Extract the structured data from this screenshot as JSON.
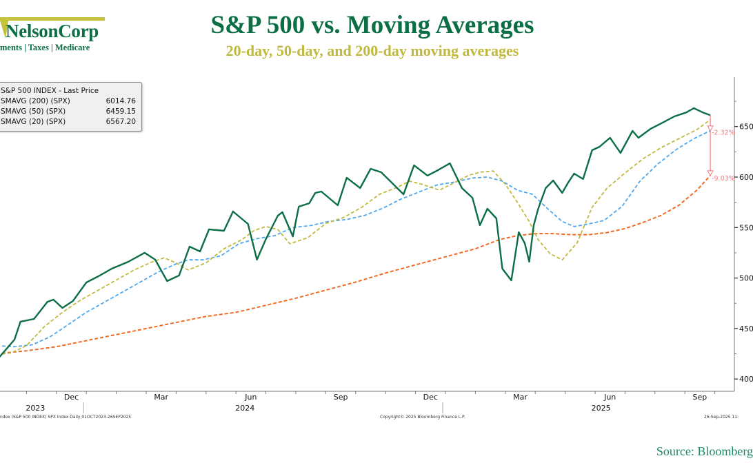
{
  "logo": {
    "name": "NelsonCorp",
    "tagline": "ments | Taxes | Medicare"
  },
  "header": {
    "title": "S&P 500 vs. Moving Averages",
    "subtitle": "20-day, 50-day, and 200-day moving averages"
  },
  "legend": {
    "rows": [
      {
        "label": "S&P 500 INDEX - Last Price",
        "value": ""
      },
      {
        "label": "SMAVG (200) (SPX)",
        "value": "6014.76"
      },
      {
        "label": "SMAVG (50) (SPX)",
        "value": "6459.15"
      },
      {
        "label": "SMAVG (20) (SPX)",
        "value": "6567.20"
      }
    ]
  },
  "annotations": {
    "to_sma50": "-2.32%",
    "to_sma200": "-9.03%"
  },
  "footer": {
    "left_note": "ndex (S&P 500 INDEX) SPX Index  Daily 01OCT2023-26SEP2025",
    "center_note": "Copyright© 2025 Bloomberg Finance L.P.",
    "right_note": "26-Sep-2025 11:",
    "source": "Source: Bloomberg"
  },
  "colors": {
    "price": "#0b6e45",
    "sma20": "#c1b93c",
    "sma50": "#4aa7f0",
    "sma200": "#f26a22",
    "annotation": "#f07a80",
    "title": "#0b6e45",
    "subtitle": "#c1b93c"
  },
  "chart_data": {
    "type": "line",
    "title": "S&P 500 vs. Moving Averages",
    "subtitle": "20-day, 50-day, and 200-day moving averages",
    "xlabel": "",
    "ylabel": "",
    "x_unit": "months since 2023-10-01",
    "x_range": [
      0,
      23.85
    ],
    "ylim": [
      3950,
      6900
    ],
    "y_ticks": [
      4000,
      4500,
      5000,
      5500,
      6000,
      6500
    ],
    "y_tick_labels": [
      "4000",
      "4500",
      "5000",
      "5500",
      "6000",
      "6500"
    ],
    "y_axis_side": "right",
    "x_month_ticks": [
      {
        "label": "Dec",
        "m": 2.5
      },
      {
        "label": "Mar",
        "m": 5.5
      },
      {
        "label": "Jun",
        "m": 8.5
      },
      {
        "label": "Sep",
        "m": 11.5
      },
      {
        "label": "Dec",
        "m": 14.5
      },
      {
        "label": "Mar",
        "m": 17.5
      },
      {
        "label": "Jun",
        "m": 20.5
      },
      {
        "label": "Sep",
        "m": 23.5
      }
    ],
    "x_year_labels": [
      {
        "label": "2023",
        "m": 1.3
      },
      {
        "label": "2024",
        "m": 8.3
      },
      {
        "label": "2025",
        "m": 20.2
      }
    ],
    "x_year_dividers": [
      3.0,
      15.0
    ],
    "grid": false,
    "legend_position": "top-left",
    "series": [
      {
        "name": "S&P 500 INDEX - Last Price",
        "style": "solid",
        "x": [
          0,
          0.6,
          0.8,
          1.25,
          1.7,
          1.9,
          2.2,
          2.55,
          3.0,
          3.45,
          3.85,
          4.4,
          4.95,
          5.3,
          5.7,
          6.1,
          6.45,
          6.8,
          7.1,
          7.6,
          7.9,
          8.4,
          8.7,
          9.0,
          9.4,
          9.55,
          9.9,
          10.1,
          10.45,
          10.65,
          10.85,
          11.4,
          11.7,
          12.15,
          12.5,
          12.85,
          13.25,
          13.6,
          13.95,
          14.4,
          14.75,
          15.15,
          15.55,
          15.9,
          16.15,
          16.4,
          16.7,
          16.9,
          17.2,
          17.45,
          17.65,
          17.8,
          17.95,
          18.1,
          18.35,
          18.6,
          18.9,
          19.1,
          19.3,
          19.6,
          19.9,
          20.15,
          20.5,
          20.85,
          21.25,
          21.45,
          21.85,
          22.2,
          22.65,
          23.05,
          23.3,
          23.6,
          23.85
        ],
        "values": [
          4185,
          4390,
          4568,
          4595,
          4765,
          4786,
          4704,
          4772,
          4956,
          5025,
          5093,
          5161,
          5250,
          5182,
          4970,
          5025,
          5311,
          5263,
          5482,
          5468,
          5659,
          5536,
          5182,
          5386,
          5618,
          5652,
          5413,
          5707,
          5741,
          5843,
          5857,
          5720,
          5993,
          5891,
          6082,
          6048,
          5932,
          5829,
          6116,
          6014,
          6068,
          6136,
          5891,
          5795,
          5523,
          5686,
          5591,
          5093,
          4977,
          5454,
          5345,
          5161,
          5523,
          5686,
          5891,
          5966,
          5843,
          5945,
          6034,
          5980,
          6266,
          6300,
          6389,
          6239,
          6457,
          6389,
          6477,
          6530,
          6600,
          6640,
          6682,
          6640,
          6612
        ]
      },
      {
        "name": "SMAVG (20) (SPX)",
        "style": "dashed",
        "x": [
          0,
          0.5,
          1.0,
          1.6,
          2.2,
          2.8,
          3.4,
          4.0,
          4.6,
          5.2,
          5.6,
          6.0,
          6.4,
          7.0,
          7.6,
          8.2,
          8.6,
          9.0,
          9.4,
          9.8,
          10.4,
          11.0,
          11.6,
          12.2,
          12.8,
          13.4,
          13.8,
          14.2,
          14.8,
          15.4,
          15.8,
          16.2,
          16.6,
          17.0,
          17.4,
          17.8,
          18.1,
          18.5,
          18.9,
          19.4,
          19.9,
          20.4,
          21.0,
          21.6,
          22.2,
          22.8,
          23.4,
          23.85
        ],
        "values": [
          4240,
          4260,
          4330,
          4520,
          4660,
          4780,
          4880,
          4980,
          5080,
          5160,
          5200,
          5150,
          5080,
          5150,
          5290,
          5380,
          5470,
          5510,
          5480,
          5340,
          5400,
          5540,
          5600,
          5700,
          5830,
          5900,
          5960,
          5930,
          5870,
          5960,
          6020,
          6050,
          6060,
          5930,
          5750,
          5560,
          5380,
          5240,
          5180,
          5350,
          5700,
          5890,
          6040,
          6180,
          6290,
          6380,
          6470,
          6567.2
        ]
      },
      {
        "name": "SMAVG (50) (SPX)",
        "style": "dashed",
        "x": [
          0,
          0.6,
          1.2,
          1.8,
          2.4,
          3.0,
          3.6,
          4.2,
          4.8,
          5.4,
          6.0,
          6.4,
          6.9,
          7.5,
          8.1,
          8.7,
          9.3,
          9.9,
          10.5,
          11.1,
          11.7,
          12.3,
          12.9,
          13.5,
          14.1,
          14.7,
          15.3,
          15.9,
          16.4,
          16.9,
          17.4,
          17.9,
          18.4,
          18.9,
          19.3,
          19.7,
          20.3,
          20.9,
          21.5,
          22.1,
          22.7,
          23.3,
          23.85
        ],
        "values": [
          4330,
          4320,
          4340,
          4420,
          4540,
          4660,
          4760,
          4860,
          4960,
          5060,
          5140,
          5180,
          5180,
          5220,
          5340,
          5390,
          5420,
          5500,
          5520,
          5560,
          5580,
          5620,
          5690,
          5780,
          5850,
          5920,
          5950,
          5990,
          6000,
          5960,
          5870,
          5830,
          5690,
          5560,
          5510,
          5530,
          5570,
          5710,
          5960,
          6130,
          6270,
          6380,
          6459.15
        ]
      },
      {
        "name": "SMAVG (200) (SPX)",
        "style": "dashed",
        "x": [
          0,
          1.0,
          2.0,
          3.0,
          4.0,
          5.0,
          6.0,
          7.0,
          8.0,
          9.0,
          10.0,
          11.0,
          12.0,
          13.0,
          14.0,
          15.0,
          16.0,
          16.8,
          17.4,
          18.0,
          18.6,
          19.2,
          19.8,
          20.4,
          21.0,
          21.6,
          22.2,
          22.8,
          23.4,
          23.85
        ],
        "values": [
          4250,
          4280,
          4320,
          4380,
          4440,
          4500,
          4560,
          4620,
          4660,
          4730,
          4800,
          4880,
          4960,
          5050,
          5130,
          5210,
          5290,
          5380,
          5420,
          5440,
          5440,
          5430,
          5430,
          5450,
          5490,
          5550,
          5620,
          5720,
          5870,
          6014.76
        ]
      }
    ],
    "annotations": [
      {
        "text": "-2.32%",
        "from": "Last Price",
        "to": "SMAVG (50)"
      },
      {
        "text": "-9.03%",
        "from": "Last Price",
        "to": "SMAVG (200)"
      }
    ]
  }
}
